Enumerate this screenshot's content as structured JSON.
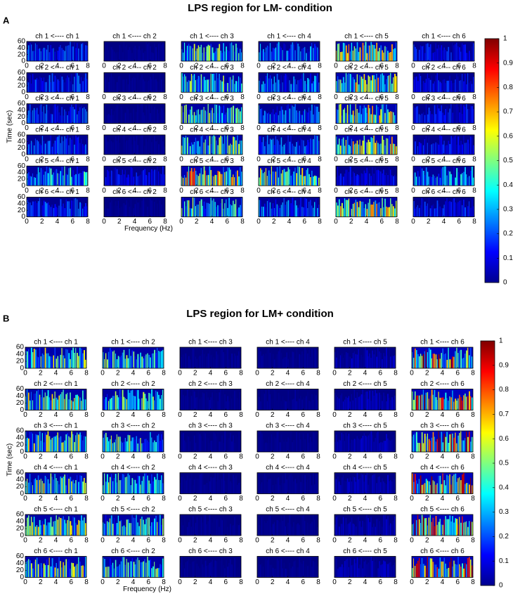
{
  "chart_data": [
    {
      "type": "heatmap-grid",
      "letter": "A",
      "title": "LPS region for LM- condition",
      "xlabel": "Frequency (Hz)",
      "ylabel": "Time (sec)",
      "panel_titles": [
        [
          "ch 1 <---- ch 1",
          "ch 1 <---- ch 2",
          "ch 1 <---- ch 3",
          "ch 1 <---- ch 4",
          "ch 1 <---- ch 5",
          "ch 1 <---- ch 6"
        ],
        [
          "ch 2 <---- ch 1",
          "ch 2 <---- ch 2",
          "ch 2 <---- ch 3",
          "ch 2 <---- ch 4",
          "ch 2 <---- ch 5",
          "ch 2 <---- ch 6"
        ],
        [
          "ch 3 <---- ch 1",
          "ch 3 <---- ch 2",
          "ch 3 <---- ch 3",
          "ch 3 <---- ch 4",
          "ch 3 <---- ch 5",
          "ch 3 <---- ch 6"
        ],
        [
          "ch 4 <---- ch 1",
          "ch 4 <---- ch 2",
          "ch 4 <---- ch 3",
          "ch 4 <---- ch 4",
          "ch 4 <---- ch 5",
          "ch 4 <---- ch 6"
        ],
        [
          "ch 5 <---- ch 1",
          "ch 5 <---- ch 2",
          "ch 5 <---- ch 3",
          "ch 5 <---- ch 4",
          "ch 5 <---- ch 5",
          "ch 5 <---- ch 6"
        ],
        [
          "ch 6 <---- ch 1",
          "ch 6 <---- ch 2",
          "ch 6 <---- ch 3",
          "ch 6 <---- ch 4",
          "ch 6 <---- ch 5",
          "ch 6 <---- ch 6"
        ]
      ],
      "intensity": [
        [
          0.15,
          0.02,
          0.35,
          0.2,
          0.45,
          0.12
        ],
        [
          0.15,
          0.02,
          0.35,
          0.2,
          0.45,
          0.12
        ],
        [
          0.15,
          0.02,
          0.35,
          0.2,
          0.45,
          0.12
        ],
        [
          0.15,
          0.02,
          0.35,
          0.2,
          0.45,
          0.12
        ],
        [
          0.3,
          0.1,
          0.5,
          0.4,
          0.1,
          0.25
        ],
        [
          0.15,
          0.02,
          0.35,
          0.2,
          0.45,
          0.12
        ]
      ],
      "xlim": [
        0,
        8
      ],
      "xticks": [
        0,
        2,
        4,
        6,
        8
      ],
      "ylim": [
        0,
        60
      ],
      "yticks": [
        0,
        20,
        40,
        60
      ],
      "clim": [
        0,
        1
      ],
      "cticks": [
        0,
        0.1,
        0.2,
        0.3,
        0.4,
        0.5,
        0.6,
        0.7,
        0.8,
        0.9,
        1
      ]
    },
    {
      "type": "heatmap-grid",
      "letter": "B",
      "title": "LPS region for LM+ condition",
      "xlabel": "Frequency (Hz)",
      "ylabel": "Time (sec)",
      "panel_titles": [
        [
          "ch 1 <---- ch 1",
          "ch 1 <---- ch 2",
          "ch 1 <---- ch 3",
          "ch 1 <---- ch 4",
          "ch 1 <---- ch 5",
          "ch 1 <---- ch 6"
        ],
        [
          "ch 2 <---- ch 1",
          "ch 2 <---- ch 2",
          "ch 2 <---- ch 3",
          "ch 2 <---- ch 4",
          "ch 2 <---- ch 5",
          "ch 2 <---- ch 6"
        ],
        [
          "ch 3 <---- ch 1",
          "ch 3 <---- ch 2",
          "ch 3 <---- ch 3",
          "ch 3 <---- ch 4",
          "ch 3 <---- ch 5",
          "ch 3 <---- ch 6"
        ],
        [
          "ch 4 <---- ch 1",
          "ch 4 <---- ch 2",
          "ch 4 <---- ch 3",
          "ch 4 <---- ch 4",
          "ch 4 <---- ch 5",
          "ch 4 <---- ch 6"
        ],
        [
          "ch 5 <---- ch 1",
          "ch 5 <---- ch 2",
          "ch 5 <---- ch 3",
          "ch 5 <---- ch 4",
          "ch 5 <---- ch 5",
          "ch 5 <---- ch 6"
        ],
        [
          "ch 6 <---- ch 1",
          "ch 6 <---- ch 2",
          "ch 6 <---- ch 3",
          "ch 6 <---- ch 4",
          "ch 6 <---- ch 5",
          "ch 6 <---- ch 6"
        ]
      ],
      "intensity": [
        [
          0.4,
          0.35,
          0.02,
          0.02,
          0.05,
          0.6
        ],
        [
          0.4,
          0.35,
          0.02,
          0.02,
          0.05,
          0.6
        ],
        [
          0.4,
          0.35,
          0.02,
          0.02,
          0.05,
          0.6
        ],
        [
          0.4,
          0.35,
          0.02,
          0.02,
          0.05,
          0.6
        ],
        [
          0.4,
          0.35,
          0.02,
          0.02,
          0.05,
          0.6
        ],
        [
          0.4,
          0.35,
          0.02,
          0.02,
          0.05,
          0.6
        ]
      ],
      "xlim": [
        0,
        8
      ],
      "xticks": [
        0,
        2,
        4,
        6,
        8
      ],
      "ylim": [
        0,
        60
      ],
      "yticks": [
        0,
        20,
        40,
        60
      ],
      "clim": [
        0,
        1
      ],
      "cticks": [
        0,
        0.1,
        0.2,
        0.3,
        0.4,
        0.5,
        0.6,
        0.7,
        0.8,
        0.9,
        1
      ]
    }
  ]
}
